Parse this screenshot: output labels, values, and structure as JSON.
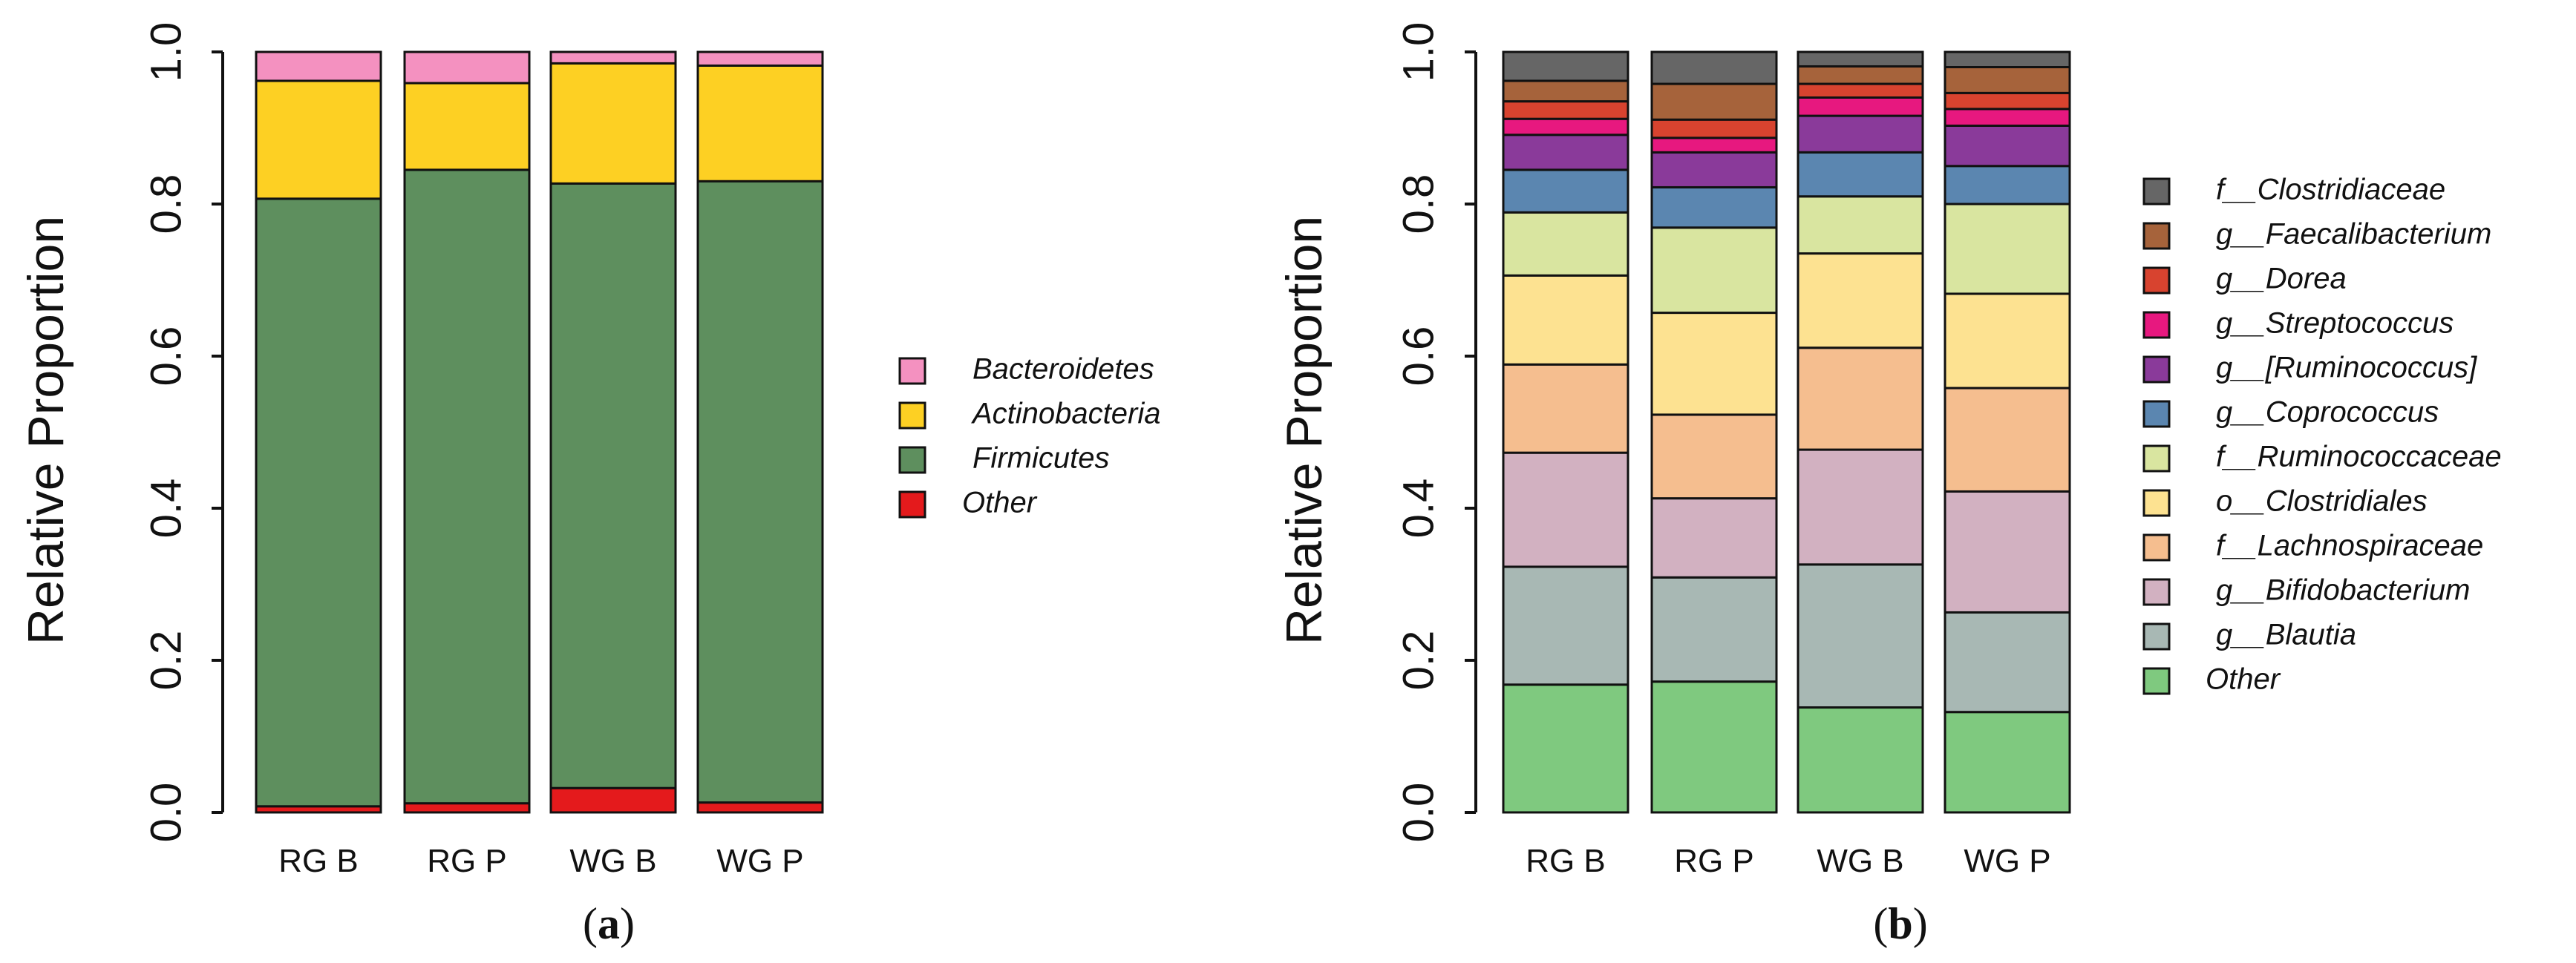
{
  "chart_data": [
    {
      "type": "bar",
      "stacked": true,
      "panel": "a",
      "ylabel": "Relative Proportion",
      "ylim": [
        0,
        1
      ],
      "yticks": [
        "0.0",
        "0.2",
        "0.4",
        "0.6",
        "0.8",
        "1.0"
      ],
      "categories": [
        "RG B",
        "RG P",
        "WG B",
        "WG P"
      ],
      "series": [
        {
          "name": "Other",
          "color": "#e41a1c",
          "values": [
            0.008,
            0.012,
            0.032,
            0.013
          ]
        },
        {
          "name": "Firmicutes",
          "color": "#5e8f5e",
          "values": [
            0.799,
            0.833,
            0.795,
            0.817
          ]
        },
        {
          "name": "Actinobacteria",
          "color": "#fdd023",
          "values": [
            0.155,
            0.114,
            0.158,
            0.152
          ]
        },
        {
          "name": "Bacteroidetes",
          "color": "#f491c0",
          "values": [
            0.038,
            0.041,
            0.015,
            0.018
          ]
        }
      ],
      "legend": [
        "Bacteroidetes",
        "Actinobacteria",
        "Firmicutes",
        "Other"
      ]
    },
    {
      "type": "bar",
      "stacked": true,
      "panel": "b",
      "ylabel": "Relative Proportion",
      "ylim": [
        0,
        1
      ],
      "yticks": [
        "0.0",
        "0.2",
        "0.4",
        "0.6",
        "0.8",
        "1.0"
      ],
      "categories": [
        "RG B",
        "RG P",
        "WG B",
        "WG P"
      ],
      "series": [
        {
          "name": "Other",
          "color": "#7fc97f",
          "values": [
            0.168,
            0.172,
            0.138,
            0.132
          ]
        },
        {
          "name": "g__Blautia",
          "color": "#a8b8b4",
          "values": [
            0.155,
            0.137,
            0.188,
            0.131
          ]
        },
        {
          "name": "g__Bifidobacterium",
          "color": "#d2b1c1",
          "values": [
            0.15,
            0.104,
            0.151,
            0.159
          ]
        },
        {
          "name": "f__Lachnospiraceae",
          "color": "#f5be8f",
          "values": [
            0.116,
            0.11,
            0.134,
            0.136
          ]
        },
        {
          "name": "o__Clostridiales",
          "color": "#fde291",
          "values": [
            0.117,
            0.134,
            0.124,
            0.124
          ]
        },
        {
          "name": "f__Ruminococcaceae",
          "color": "#d9e5a0",
          "values": [
            0.083,
            0.112,
            0.075,
            0.118
          ]
        },
        {
          "name": "g__Coprococcus",
          "color": "#5b86b0",
          "values": [
            0.056,
            0.053,
            0.058,
            0.05
          ]
        },
        {
          "name": "g__[Ruminococcus]",
          "color": "#8a3a9a",
          "values": [
            0.046,
            0.046,
            0.048,
            0.053
          ]
        },
        {
          "name": "g__Streptococcus",
          "color": "#e7187f",
          "values": [
            0.021,
            0.019,
            0.024,
            0.022
          ]
        },
        {
          "name": "g__Dorea",
          "color": "#d8432f",
          "values": [
            0.023,
            0.024,
            0.018,
            0.021
          ]
        },
        {
          "name": "g__Faecalibacterium",
          "color": "#a6633b",
          "values": [
            0.027,
            0.047,
            0.023,
            0.034
          ]
        },
        {
          "name": "f__Clostridiaceae",
          "color": "#666666",
          "values": [
            0.038,
            0.042,
            0.019,
            0.02
          ]
        }
      ],
      "legend": [
        "f__Clostridiaceae",
        "g__Faecalibacterium",
        "g__Dorea",
        "g__Streptococcus",
        "g__[Ruminococcus]",
        "g__Coprococcus",
        "f__Ruminococcaceae",
        "o__Clostridiales",
        "f__Lachnospiraceae",
        "g__Bifidobacterium",
        "g__Blautia",
        "Other"
      ]
    }
  ],
  "panel_labels": [
    "a",
    "b"
  ]
}
